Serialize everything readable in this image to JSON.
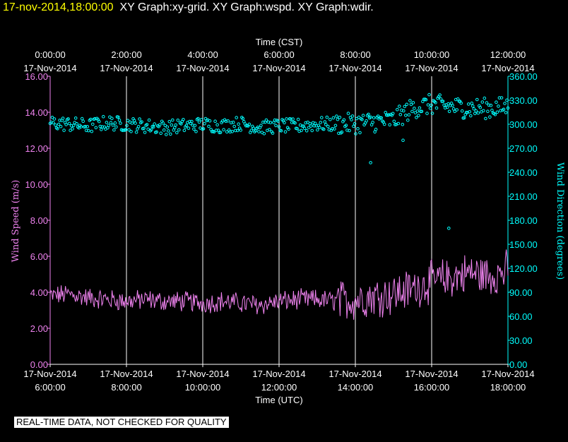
{
  "header": {
    "timestamp": "17-nov-2014,18:00:00",
    "graphs": "XY Graph:xy-grid.  XY Graph:wspd.  XY Graph:wdir."
  },
  "notice": "REAL-TIME DATA, NOT CHECKED FOR QUALITY",
  "colors": {
    "background": "#000000",
    "header_timestamp": "#ffff00",
    "wind_speed": "#ee82ee",
    "wind_direction": "#00ffff",
    "grid": "#ffffff"
  },
  "chart_data": {
    "type": "line",
    "x_label_top": "Time (CST)",
    "x_label_bottom": "Time (UTC)",
    "x_range_utc_hours": [
      6,
      18
    ],
    "top_ticks": [
      {
        "time": "0:00:00",
        "date": "17-Nov-2014"
      },
      {
        "time": "2:00:00",
        "date": "17-Nov-2014"
      },
      {
        "time": "4:00:00",
        "date": "17-Nov-2014"
      },
      {
        "time": "6:00:00",
        "date": "17-Nov-2014"
      },
      {
        "time": "8:00:00",
        "date": "17-Nov-2014"
      },
      {
        "time": "10:00:00",
        "date": "17-Nov-2014"
      },
      {
        "time": "12:00:00",
        "date": "17-Nov-2014"
      }
    ],
    "bottom_ticks": [
      {
        "time": "6:00:00",
        "date": "17-Nov-2014"
      },
      {
        "time": "8:00:00",
        "date": "17-Nov-2014"
      },
      {
        "time": "10:00:00",
        "date": "17-Nov-2014"
      },
      {
        "time": "12:00:00",
        "date": "17-Nov-2014"
      },
      {
        "time": "14:00:00",
        "date": "17-Nov-2014"
      },
      {
        "time": "16:00:00",
        "date": "17-Nov-2014"
      },
      {
        "time": "18:00:00",
        "date": "17-Nov-2014"
      }
    ],
    "y_left": {
      "label": "Wind Speed (m/s)",
      "range": [
        0,
        16
      ],
      "ticks": [
        "0.00",
        "2.00",
        "4.00",
        "6.00",
        "8.00",
        "10.00",
        "12.00",
        "14.00",
        "16.00"
      ]
    },
    "y_right": {
      "label": "Wind Direction (degrees)",
      "range": [
        0,
        360
      ],
      "ticks": [
        "0.00",
        "30.00",
        "60.00",
        "90.00",
        "120.00",
        "150.00",
        "180.00",
        "210.00",
        "240.00",
        "270.00",
        "300.00",
        "330.00",
        "360.00"
      ]
    },
    "series": [
      {
        "name": "Wind Speed",
        "axis": "left",
        "style": "line",
        "sample_interval_hours": 0.5,
        "start_hour": 6,
        "values": [
          3.8,
          3.9,
          3.7,
          3.6,
          3.5,
          3.6,
          3.5,
          3.5,
          3.4,
          3.5,
          3.4,
          3.3,
          3.5,
          3.6,
          3.6,
          3.5,
          3.6,
          3.8,
          3.9,
          4.2,
          4.6,
          4.8,
          5.1,
          4.9,
          5.2
        ]
      },
      {
        "name": "Wind Direction",
        "axis": "right",
        "style": "dots",
        "sample_interval_hours": 0.5,
        "start_hour": 6,
        "values": [
          302,
          300,
          298,
          302,
          300,
          298,
          296,
          298,
          300,
          298,
          301,
          296,
          298,
          298,
          300,
          300,
          301,
          303,
          305,
          320,
          325,
          322,
          320,
          320,
          322
        ],
        "outliers": [
          {
            "hour": 14.4,
            "value": 252
          },
          {
            "hour": 15.25,
            "value": 280
          },
          {
            "hour": 16.45,
            "value": 170
          }
        ]
      }
    ]
  }
}
